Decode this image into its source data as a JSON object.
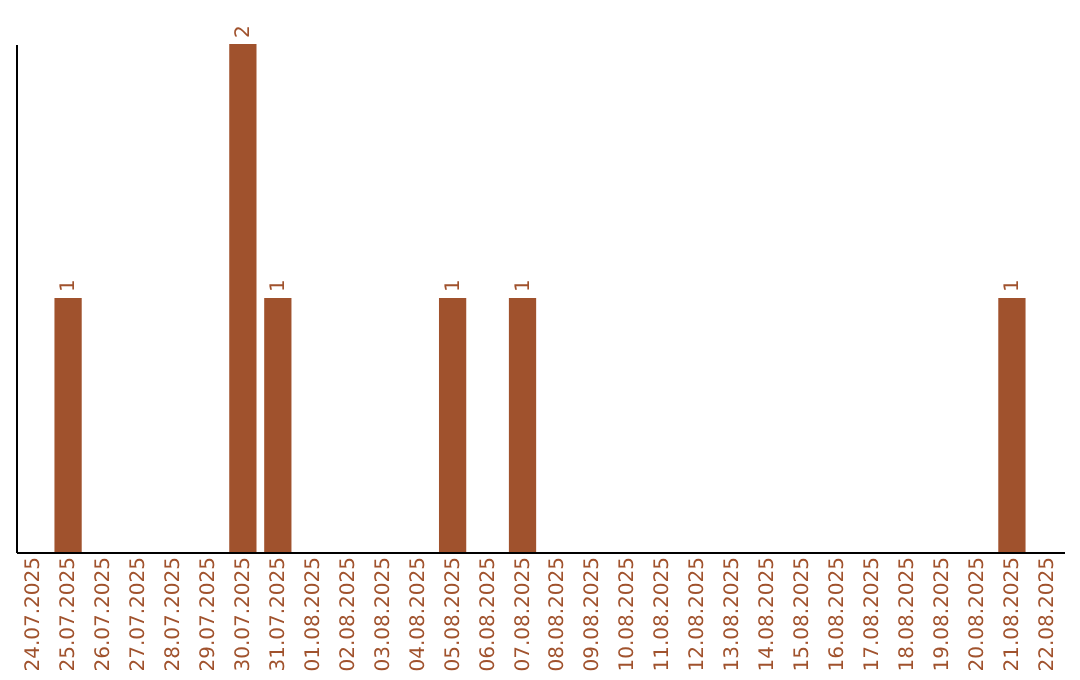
{
  "chart_data": {
    "type": "bar",
    "categories": [
      "24.07.2025",
      "25.07.2025",
      "26.07.2025",
      "27.07.2025",
      "28.07.2025",
      "29.07.2025",
      "30.07.2025",
      "31.07.2025",
      "01.08.2025",
      "02.08.2025",
      "03.08.2025",
      "04.08.2025",
      "05.08.2025",
      "06.08.2025",
      "07.08.2025",
      "08.08.2025",
      "09.08.2025",
      "10.08.2025",
      "11.08.2025",
      "12.08.2025",
      "13.08.2025",
      "14.08.2025",
      "15.08.2025",
      "16.08.2025",
      "17.08.2025",
      "18.08.2025",
      "19.08.2025",
      "20.08.2025",
      "21.08.2025",
      "22.08.2025"
    ],
    "values": [
      0,
      1,
      0,
      0,
      0,
      0,
      2,
      1,
      0,
      0,
      0,
      0,
      1,
      0,
      1,
      0,
      0,
      0,
      0,
      0,
      0,
      0,
      0,
      0,
      0,
      0,
      0,
      0,
      1,
      0
    ],
    "value_labels": [
      null,
      "1",
      null,
      null,
      null,
      null,
      "2",
      "1",
      null,
      null,
      null,
      null,
      "1",
      null,
      "1",
      null,
      null,
      null,
      null,
      null,
      null,
      null,
      null,
      null,
      null,
      null,
      null,
      null,
      "1",
      null
    ],
    "color": "#a0522d"
  }
}
